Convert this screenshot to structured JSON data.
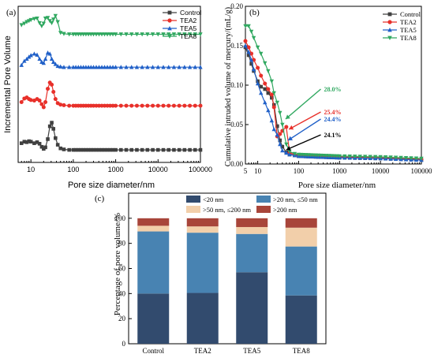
{
  "chart_data": [
    {
      "panel": "(a)",
      "type": "line",
      "xscale": "log",
      "xlabel": "Pore size diameter/nm",
      "ylabel": "Incremental Pore Volume",
      "xlim": [
        5,
        100000
      ],
      "x_ticks": [
        10,
        100,
        1000,
        10000,
        100000
      ],
      "x_tick_labels": [
        "10",
        "100",
        "1000",
        "10000",
        "100000"
      ],
      "y_tick_labels_shown": false,
      "legend_position": "top-right",
      "series": [
        {
          "name": "Control",
          "color": "#404040",
          "marker": "square",
          "points": [
            [
              6,
              0.22
            ],
            [
              7,
              0.25
            ],
            [
              8,
              0.24
            ],
            [
              9,
              0.26
            ],
            [
              10,
              0.25
            ],
            [
              12,
              0.22
            ],
            [
              14,
              0.24
            ],
            [
              16,
              0.21
            ],
            [
              18,
              0.15
            ],
            [
              20,
              0.11
            ],
            [
              22,
              0.14
            ],
            [
              25,
              0.3
            ],
            [
              28,
              0.55
            ],
            [
              31,
              0.62
            ],
            [
              34,
              0.5
            ],
            [
              38,
              0.32
            ],
            [
              43,
              0.19
            ],
            [
              50,
              0.12
            ],
            [
              60,
              0.1
            ],
            [
              80,
              0.09
            ],
            [
              100,
              0.09
            ],
            [
              300,
              0.09
            ],
            [
              1000,
              0.09
            ],
            [
              10000,
              0.09
            ],
            [
              100000,
              0.09
            ]
          ]
        },
        {
          "name": "TEA2",
          "color": "#e8302a",
          "marker": "circle",
          "points": [
            [
              6,
              1.02
            ],
            [
              7,
              1.09
            ],
            [
              8,
              1.11
            ],
            [
              9,
              1.08
            ],
            [
              10,
              1.06
            ],
            [
              12,
              1.05
            ],
            [
              14,
              1.08
            ],
            [
              16,
              1.05
            ],
            [
              18,
              0.98
            ],
            [
              20,
              0.92
            ],
            [
              22,
              1.02
            ],
            [
              25,
              1.28
            ],
            [
              28,
              1.4
            ],
            [
              31,
              1.36
            ],
            [
              34,
              1.22
            ],
            [
              38,
              1.08
            ],
            [
              43,
              1.0
            ],
            [
              50,
              0.97
            ],
            [
              60,
              0.96
            ],
            [
              80,
              0.95
            ],
            [
              100,
              0.95
            ],
            [
              300,
              0.95
            ],
            [
              1000,
              0.95
            ],
            [
              10000,
              0.95
            ],
            [
              100000,
              0.95
            ]
          ]
        },
        {
          "name": "TEA5",
          "color": "#2060c8",
          "marker": "triangle-up",
          "points": [
            [
              6,
              1.74
            ],
            [
              7,
              1.82
            ],
            [
              8,
              1.86
            ],
            [
              9,
              1.9
            ],
            [
              10,
              1.93
            ],
            [
              12,
              1.96
            ],
            [
              14,
              1.94
            ],
            [
              16,
              1.86
            ],
            [
              18,
              1.8
            ],
            [
              20,
              1.78
            ],
            [
              22,
              1.86
            ],
            [
              25,
              1.98
            ],
            [
              28,
              1.96
            ],
            [
              31,
              1.86
            ],
            [
              34,
              1.8
            ],
            [
              38,
              1.76
            ],
            [
              43,
              1.72
            ],
            [
              50,
              1.71
            ],
            [
              60,
              1.7
            ],
            [
              80,
              1.7
            ],
            [
              100,
              1.7
            ],
            [
              300,
              1.7
            ],
            [
              1000,
              1.7
            ],
            [
              10000,
              1.7
            ],
            [
              100000,
              1.7
            ]
          ]
        },
        {
          "name": "TEA8",
          "color": "#30a860",
          "marker": "triangle-down",
          "points": [
            [
              6,
              2.52
            ],
            [
              7,
              2.55
            ],
            [
              8,
              2.58
            ],
            [
              9,
              2.6
            ],
            [
              10,
              2.62
            ],
            [
              12,
              2.64
            ],
            [
              14,
              2.65
            ],
            [
              16,
              2.56
            ],
            [
              18,
              2.5
            ],
            [
              20,
              2.55
            ],
            [
              22,
              2.65
            ],
            [
              25,
              2.66
            ],
            [
              28,
              2.6
            ],
            [
              31,
              2.56
            ],
            [
              34,
              2.63
            ],
            [
              38,
              2.7
            ],
            [
              43,
              2.58
            ],
            [
              50,
              2.37
            ],
            [
              60,
              2.35
            ],
            [
              80,
              2.34
            ],
            [
              100,
              2.34
            ],
            [
              300,
              2.34
            ],
            [
              1000,
              2.34
            ],
            [
              10000,
              2.34
            ],
            [
              100000,
              2.34
            ]
          ]
        }
      ]
    },
    {
      "panel": "(b)",
      "type": "line",
      "xscale": "log",
      "xlabel": "Pore size diameter/nm",
      "ylabel": "Cumulative intruded volume of mercury/(mL/g)",
      "xlim": [
        5,
        100000
      ],
      "ylim": [
        0,
        0.2
      ],
      "x_ticks": [
        5,
        10,
        100,
        1000,
        10000,
        100000
      ],
      "x_tick_labels": [
        "5",
        "10",
        "100",
        "1000",
        "10000",
        "100000"
      ],
      "y_ticks": [
        0,
        0.05,
        0.1,
        0.15,
        0.2
      ],
      "y_tick_labels": [
        "0.00",
        "0.05",
        "0.10",
        "0.15",
        "0.20"
      ],
      "legend_position": "top-right",
      "series": [
        {
          "name": "Control",
          "color": "#404040",
          "marker": "square",
          "points": [
            [
              5,
              0.148
            ],
            [
              6,
              0.138
            ],
            [
              7,
              0.127
            ],
            [
              8,
              0.118
            ],
            [
              10,
              0.105
            ],
            [
              12,
              0.098
            ],
            [
              15,
              0.095
            ],
            [
              18,
              0.09
            ],
            [
              22,
              0.084
            ],
            [
              25,
              0.075
            ],
            [
              30,
              0.048
            ],
            [
              35,
              0.03
            ],
            [
              40,
              0.022
            ],
            [
              50,
              0.015
            ],
            [
              60,
              0.012
            ],
            [
              80,
              0.011
            ],
            [
              100,
              0.01
            ],
            [
              300,
              0.009
            ],
            [
              1000,
              0.008
            ],
            [
              10000,
              0.007
            ],
            [
              100000,
              0.005
            ]
          ]
        },
        {
          "name": "TEA2",
          "color": "#e8302a",
          "marker": "circle",
          "points": [
            [
              5,
              0.156
            ],
            [
              6,
              0.148
            ],
            [
              7,
              0.14
            ],
            [
              8,
              0.132
            ],
            [
              10,
              0.122
            ],
            [
              12,
              0.112
            ],
            [
              15,
              0.102
            ],
            [
              18,
              0.095
            ],
            [
              22,
              0.088
            ],
            [
              25,
              0.072
            ],
            [
              30,
              0.035
            ],
            [
              35,
              0.038
            ],
            [
              40,
              0.042
            ],
            [
              50,
              0.047
            ],
            [
              60,
              0.014
            ],
            [
              80,
              0.012
            ],
            [
              100,
              0.011
            ],
            [
              300,
              0.01
            ],
            [
              1000,
              0.009
            ],
            [
              10000,
              0.008
            ],
            [
              100000,
              0.006
            ]
          ]
        },
        {
          "name": "TEA5",
          "color": "#2060c8",
          "marker": "triangle-up",
          "points": [
            [
              5,
              0.15
            ],
            [
              6,
              0.142
            ],
            [
              7,
              0.132
            ],
            [
              8,
              0.12
            ],
            [
              10,
              0.102
            ],
            [
              12,
              0.09
            ],
            [
              15,
              0.078
            ],
            [
              18,
              0.068
            ],
            [
              22,
              0.055
            ],
            [
              25,
              0.044
            ],
            [
              30,
              0.037
            ],
            [
              35,
              0.025
            ],
            [
              40,
              0.017
            ],
            [
              50,
              0.014
            ],
            [
              60,
              0.012
            ],
            [
              80,
              0.011
            ],
            [
              100,
              0.01
            ],
            [
              300,
              0.009
            ],
            [
              1000,
              0.008
            ],
            [
              10000,
              0.007
            ],
            [
              100000,
              0.005
            ]
          ]
        },
        {
          "name": "TEA8",
          "color": "#30a860",
          "marker": "triangle-down",
          "points": [
            [
              5,
              0.175
            ],
            [
              6,
              0.175
            ],
            [
              7,
              0.168
            ],
            [
              8,
              0.16
            ],
            [
              10,
              0.148
            ],
            [
              12,
              0.14
            ],
            [
              15,
              0.128
            ],
            [
              18,
              0.118
            ],
            [
              22,
              0.105
            ],
            [
              25,
              0.09
            ],
            [
              30,
              0.078
            ],
            [
              35,
              0.065
            ],
            [
              40,
              0.05
            ],
            [
              50,
              0.025
            ],
            [
              60,
              0.016
            ],
            [
              80,
              0.013
            ],
            [
              100,
              0.012
            ],
            [
              300,
              0.011
            ],
            [
              1000,
              0.01
            ],
            [
              10000,
              0.009
            ],
            [
              100000,
              0.007
            ]
          ]
        }
      ],
      "annotations": [
        {
          "text": "28.0%",
          "color": "#30a860",
          "value_x": 380,
          "value_y": 0.095,
          "arrow_to": [
            48,
            0.057
          ]
        },
        {
          "text": "25.4%",
          "color": "#e8302a",
          "value_x": 380,
          "value_y": 0.066,
          "arrow_to": [
            58,
            0.044
          ]
        },
        {
          "text": "24.4%",
          "color": "#2060c8",
          "value_x": 380,
          "value_y": 0.057,
          "arrow_to": [
            55,
            0.03
          ]
        },
        {
          "text": "24.1%",
          "color": "#000000",
          "value_x": 380,
          "value_y": 0.037,
          "arrow_to": [
            50,
            0.018
          ]
        }
      ]
    },
    {
      "panel": "(c)",
      "type": "bar",
      "stacked": true,
      "ylabel": "Percentage of pore volume/%",
      "xlabel": "",
      "ylim": [
        0,
        120
      ],
      "y_ticks": [
        0,
        20,
        40,
        60,
        80,
        100
      ],
      "categories": [
        "Control",
        "TEA2",
        "TEA5",
        "TEA8"
      ],
      "legend_position": "top",
      "series": [
        {
          "name": "<20 nm",
          "color": "#324b6e",
          "values": [
            40,
            40.5,
            57,
            38.5
          ]
        },
        {
          "name": ">20 nm, ≤50 nm",
          "color": "#4883b2",
          "values": [
            49.5,
            48,
            30.5,
            39
          ]
        },
        {
          "name": ">50 nm, ≤200 nm",
          "color": "#f2cfaa",
          "values": [
            4.5,
            5,
            5.5,
            15
          ]
        },
        {
          "name": ">200 nm",
          "color": "#a8453a",
          "values": [
            6,
            6.5,
            7,
            7.5
          ]
        }
      ]
    }
  ]
}
